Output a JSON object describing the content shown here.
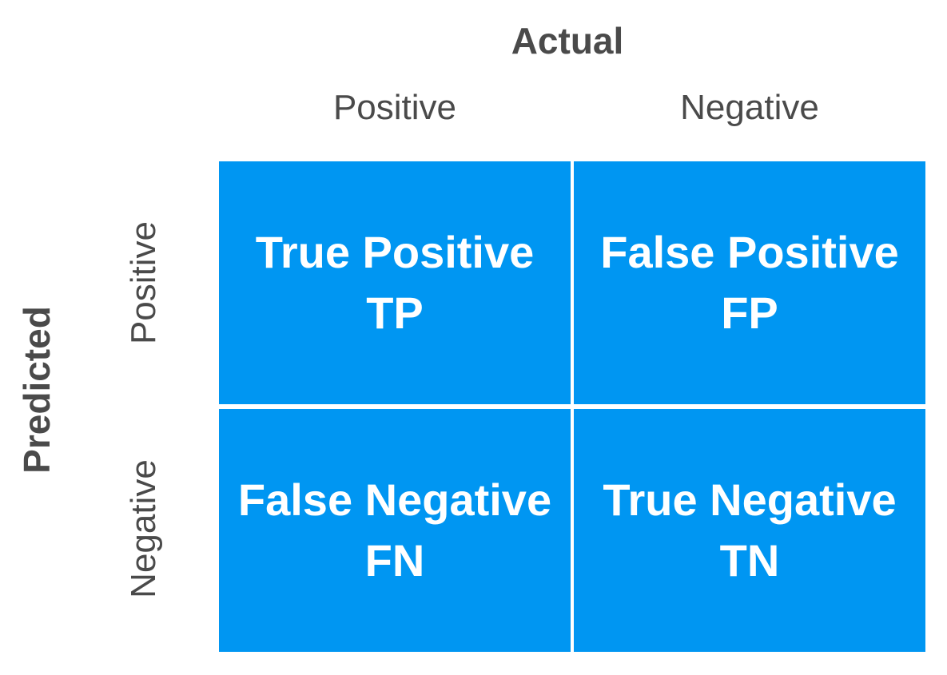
{
  "header": {
    "title": "Actual",
    "columns": [
      "Positive",
      "Negative"
    ]
  },
  "side": {
    "title": "Predicted",
    "rows": [
      "Positive",
      "Negative"
    ]
  },
  "cells": [
    [
      {
        "name": "True Positive",
        "abbr": "TP"
      },
      {
        "name": "False Positive",
        "abbr": "FP"
      }
    ],
    [
      {
        "name": "False Negative",
        "abbr": "FN"
      },
      {
        "name": "True Negative",
        "abbr": "TN"
      }
    ]
  ],
  "colors": {
    "cell": "#0096f2",
    "label": "#4a4a4a",
    "cell_text": "#ffffff"
  }
}
